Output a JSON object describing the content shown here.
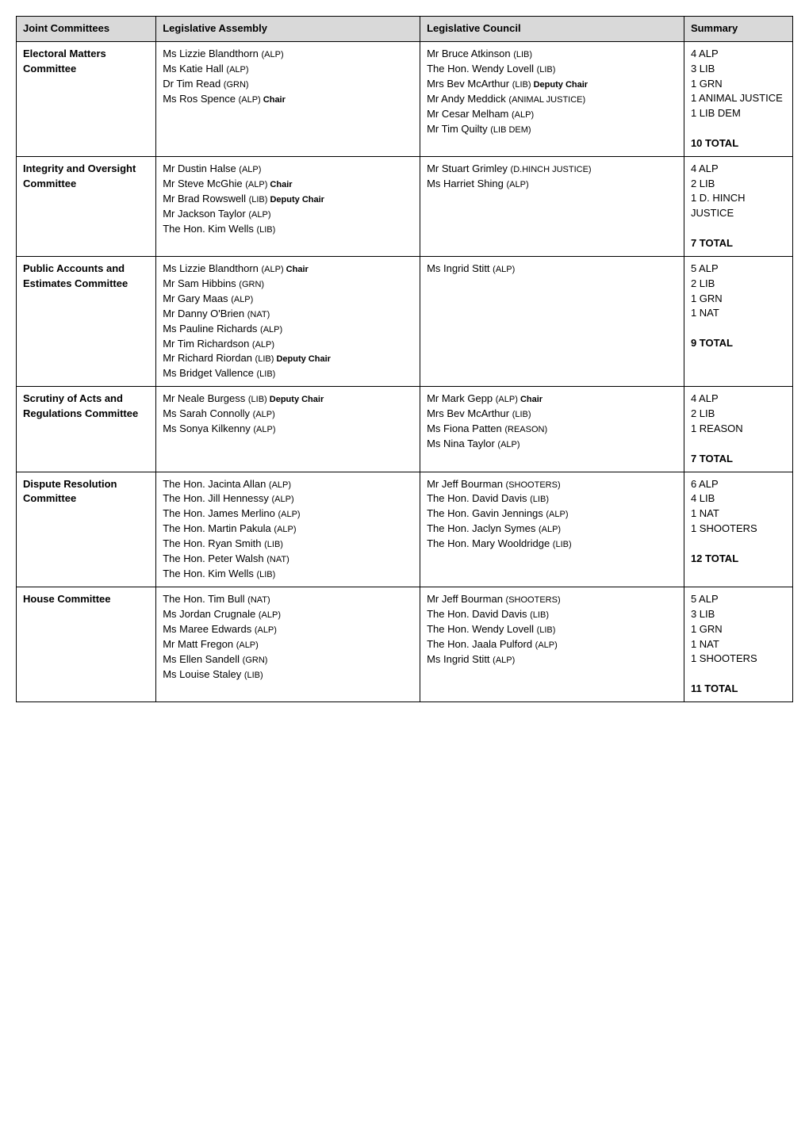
{
  "colors": {
    "header_bg": "#d9d9d9",
    "border": "#000000",
    "text": "#000000",
    "page_bg": "#ffffff"
  },
  "typography": {
    "base_fontsize_pt": 10,
    "small_fontsize_pt": 8,
    "font_family": "Arial"
  },
  "table": {
    "columns": [
      {
        "key": "joint",
        "label": "Joint Committees",
        "width_pct": 18,
        "bold_cells": true
      },
      {
        "key": "la",
        "label": "Legislative Assembly",
        "width_pct": 34,
        "bold_cells": false
      },
      {
        "key": "lc",
        "label": "Legislative Council",
        "width_pct": 34,
        "bold_cells": false
      },
      {
        "key": "summary",
        "label": "Summary",
        "width_pct": 14,
        "bold_cells": false
      }
    ],
    "rows": [
      {
        "joint": [
          {
            "t": "Electoral Matters Committee",
            "bold": true
          }
        ],
        "la": [
          {
            "t": "Ms Lizzie Blandthorn ",
            "sm": "(ALP)"
          },
          {
            "t": "Ms Katie Hall ",
            "sm": "(ALP)"
          },
          {
            "t": "Dr Tim Read ",
            "sm": "(GRN)"
          },
          {
            "t": "Ms Ros Spence ",
            "sm": "(ALP)",
            "suffix_bold": " Chair"
          }
        ],
        "lc": [
          {
            "t": "Mr Bruce Atkinson ",
            "sm": "(LIB)"
          },
          {
            "t": "The Hon. Wendy Lovell ",
            "sm": "(LIB)"
          },
          {
            "t": "Mrs Bev McArthur ",
            "sm": "(LIB)",
            "suffix_bold": " Deputy Chair"
          },
          {
            "t": "Mr Andy Meddick ",
            "sm": "(ANIMAL JUSTICE)"
          },
          {
            "t": "Mr Cesar Melham ",
            "sm": "(ALP)"
          },
          {
            "t": "Mr Tim Quilty ",
            "sm": "(LIB DEM)"
          }
        ],
        "summary": [
          {
            "t": "4 ALP"
          },
          {
            "t": "3 LIB"
          },
          {
            "t": "1 GRN"
          },
          {
            "t": "1 ANIMAL JUSTICE"
          },
          {
            "t": "1 LIB DEM"
          },
          {
            "t": ""
          },
          {
            "t": "10 TOTAL",
            "bold": true
          }
        ]
      },
      {
        "joint": [
          {
            "t": "Integrity and Oversight Committee",
            "bold": true
          }
        ],
        "la": [
          {
            "t": "Mr Dustin Halse ",
            "sm": "(ALP)"
          },
          {
            "t": "Mr Steve McGhie ",
            "sm": "(ALP)",
            "suffix_bold": " Chair"
          },
          {
            "t": "Mr Brad Rowswell ",
            "sm": "(LIB)",
            "suffix_bold": " Deputy Chair"
          },
          {
            "t": "Mr Jackson Taylor ",
            "sm": "(ALP)"
          },
          {
            "t": "The Hon. Kim Wells ",
            "sm": "(LIB)"
          }
        ],
        "lc": [
          {
            "t": "Mr Stuart Grimley ",
            "sm": "(D.HINCH JUSTICE)"
          },
          {
            "t": "Ms Harriet Shing ",
            "sm": "(ALP)"
          }
        ],
        "summary": [
          {
            "t": "4 ALP"
          },
          {
            "t": "2 LIB"
          },
          {
            "t": "1 D. HINCH JUSTICE"
          },
          {
            "t": ""
          },
          {
            "t": "7 TOTAL",
            "bold": true
          }
        ]
      },
      {
        "joint": [
          {
            "t": "Public Accounts and Estimates Committee",
            "bold": true
          }
        ],
        "la": [
          {
            "t": "Ms Lizzie Blandthorn ",
            "sm": "(ALP)",
            "suffix_bold": " Chair"
          },
          {
            "t": "Mr Sam Hibbins ",
            "sm": "(GRN)"
          },
          {
            "t": "Mr Gary Maas ",
            "sm": "(ALP)"
          },
          {
            "t": "Mr Danny O'Brien ",
            "sm": "(NAT)"
          },
          {
            "t": "Ms Pauline Richards ",
            "sm": "(ALP)"
          },
          {
            "t": "Mr Tim Richardson ",
            "sm": "(ALP)"
          },
          {
            "t": "Mr Richard Riordan ",
            "sm": "(LIB)",
            "suffix_bold": " Deputy Chair"
          },
          {
            "t": "Ms Bridget Vallence ",
            "sm": "(LIB)"
          }
        ],
        "lc": [
          {
            "t": "Ms Ingrid Stitt ",
            "sm": "(ALP)"
          }
        ],
        "summary": [
          {
            "t": "5 ALP"
          },
          {
            "t": "2 LIB"
          },
          {
            "t": "1 GRN"
          },
          {
            "t": "1 NAT"
          },
          {
            "t": ""
          },
          {
            "t": "9 TOTAL",
            "bold": true
          }
        ]
      },
      {
        "joint": [
          {
            "t": "Scrutiny of Acts and Regulations Committee",
            "bold": true
          }
        ],
        "la": [
          {
            "t": "Mr Neale Burgess ",
            "sm": "(LIB)",
            "suffix_bold": " Deputy Chair"
          },
          {
            "t": "Ms Sarah Connolly ",
            "sm": "(ALP)"
          },
          {
            "t": "Ms Sonya Kilkenny ",
            "sm": "(ALP)"
          }
        ],
        "lc": [
          {
            "t": "Mr Mark Gepp ",
            "sm": "(ALP)",
            "suffix_bold": " Chair"
          },
          {
            "t": "Mrs Bev McArthur ",
            "sm": "(LIB)"
          },
          {
            "t": "Ms Fiona Patten ",
            "sm": "(REASON)"
          },
          {
            "t": "Ms Nina Taylor ",
            "sm": "(ALP)"
          }
        ],
        "summary": [
          {
            "t": "4 ALP"
          },
          {
            "t": "2 LIB"
          },
          {
            "t": "1 REASON"
          },
          {
            "t": ""
          },
          {
            "t": "7 TOTAL",
            "bold": true
          }
        ]
      },
      {
        "joint": [
          {
            "t": "Dispute Resolution Committee",
            "bold": true
          }
        ],
        "la": [
          {
            "t": "The Hon. Jacinta Allan ",
            "sm": "(ALP)"
          },
          {
            "t": "The Hon. Jill Hennessy ",
            "sm": "(ALP)"
          },
          {
            "t": "The Hon. James Merlino ",
            "sm": "(ALP)"
          },
          {
            "t": "The Hon. Martin Pakula ",
            "sm": "(ALP)"
          },
          {
            "t": "The Hon. Ryan Smith ",
            "sm": "(LIB)"
          },
          {
            "t": "The Hon. Peter Walsh ",
            "sm": "(NAT)"
          },
          {
            "t": "The Hon. Kim Wells ",
            "sm": "(LIB)"
          }
        ],
        "lc": [
          {
            "t": "Mr Jeff Bourman ",
            "sm": "(SHOOTERS)"
          },
          {
            "t": "The Hon. David Davis ",
            "sm": "(LIB)"
          },
          {
            "t": "The Hon. Gavin Jennings ",
            "sm": "(ALP)"
          },
          {
            "t": "The Hon. Jaclyn Symes ",
            "sm": "(ALP)"
          },
          {
            "t": "The Hon. Mary Wooldridge ",
            "sm": "(LIB)"
          }
        ],
        "summary": [
          {
            "t": "6 ALP"
          },
          {
            "t": "4 LIB"
          },
          {
            "t": "1 NAT"
          },
          {
            "t": "1 SHOOTERS"
          },
          {
            "t": ""
          },
          {
            "t": "12 TOTAL",
            "bold": true
          }
        ]
      },
      {
        "joint": [
          {
            "t": "House Committee",
            "bold": true
          }
        ],
        "la": [
          {
            "t": "The Hon. Tim Bull ",
            "sm": "(NAT)"
          },
          {
            "t": "Ms Jordan Crugnale ",
            "sm": "(ALP)"
          },
          {
            "t": "Ms Maree Edwards ",
            "sm": "(ALP)"
          },
          {
            "t": "Mr Matt Fregon ",
            "sm": "(ALP)"
          },
          {
            "t": "Ms Ellen Sandell ",
            "sm": "(GRN)"
          },
          {
            "t": "Ms Louise Staley ",
            "sm": "(LIB)"
          }
        ],
        "lc": [
          {
            "t": "Mr Jeff Bourman ",
            "sm": "(SHOOTERS)"
          },
          {
            "t": "The Hon. David Davis ",
            "sm": "(LIB)"
          },
          {
            "t": "The Hon. Wendy Lovell ",
            "sm": "(LIB)"
          },
          {
            "t": "The Hon. Jaala Pulford ",
            "sm": "(ALP)"
          },
          {
            "t": "Ms Ingrid Stitt ",
            "sm": "(ALP)"
          }
        ],
        "summary": [
          {
            "t": "5 ALP"
          },
          {
            "t": "3 LIB"
          },
          {
            "t": "1 GRN"
          },
          {
            "t": "1 NAT"
          },
          {
            "t": "1 SHOOTERS"
          },
          {
            "t": ""
          },
          {
            "t": "11 TOTAL",
            "bold": true
          }
        ]
      }
    ]
  }
}
